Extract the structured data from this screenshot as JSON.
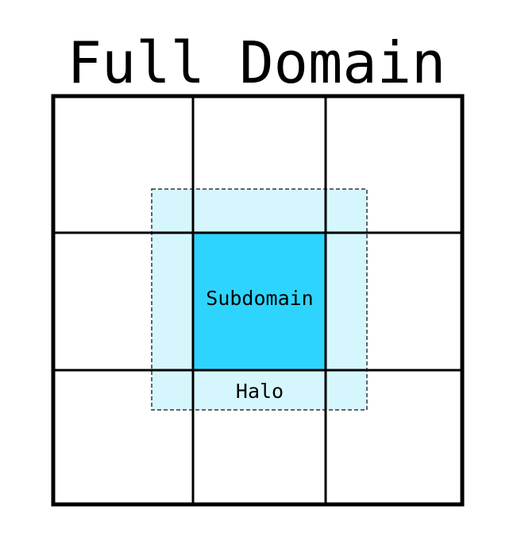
{
  "diagram": {
    "title": "Full Domain",
    "subdomain_label": "Subdomain",
    "halo_label": "Halo",
    "grid": {
      "rows": 3,
      "cols": 3
    },
    "colors": {
      "background": "#ffffff",
      "grid_stroke": "#000000",
      "halo_fill": "#d6f6fd",
      "halo_stroke": "#333333",
      "subdomain_fill": "#2dd5fe",
      "text": "#000000"
    }
  }
}
